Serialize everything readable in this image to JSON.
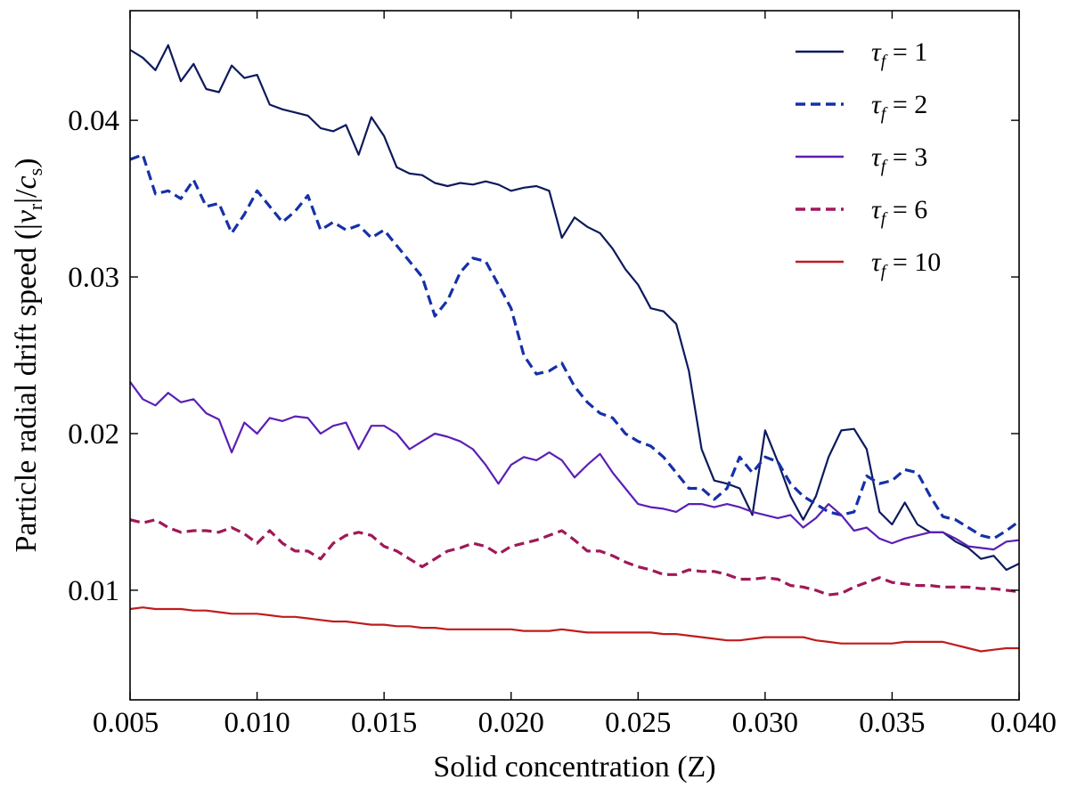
{
  "chart_data": {
    "type": "line",
    "title": "",
    "xlabel": "Solid concentration (Z)",
    "ylabel": "Particle radial drift speed (|v_r|/c_s)",
    "ylabel_parts": {
      "prefix": "Particle radial drift speed (|",
      "v": "v",
      "r": "r",
      "mid": "|/",
      "c": "c",
      "s": "s",
      "suffix": ")"
    },
    "xlim": [
      0.005,
      0.04
    ],
    "ylim": [
      0.003,
      0.047
    ],
    "xticks": [
      "0.005",
      "0.010",
      "0.015",
      "0.020",
      "0.025",
      "0.030",
      "0.035",
      "0.040"
    ],
    "xtick_values": [
      0.005,
      0.01,
      0.015,
      0.02,
      0.025,
      0.03,
      0.035,
      0.04
    ],
    "yticks": [
      "0.01",
      "0.02",
      "0.03",
      "0.04"
    ],
    "ytick_values": [
      0.01,
      0.02,
      0.03,
      0.04
    ],
    "grid": false,
    "legend_position": "top-right",
    "x": [
      0.005,
      0.0055,
      0.006,
      0.0065,
      0.007,
      0.0075,
      0.008,
      0.0085,
      0.009,
      0.0095,
      0.01,
      0.0105,
      0.011,
      0.0115,
      0.012,
      0.0125,
      0.013,
      0.0135,
      0.014,
      0.0145,
      0.015,
      0.0155,
      0.016,
      0.0165,
      0.017,
      0.0175,
      0.018,
      0.0185,
      0.019,
      0.0195,
      0.02,
      0.0205,
      0.021,
      0.0215,
      0.022,
      0.0225,
      0.023,
      0.0235,
      0.024,
      0.0245,
      0.025,
      0.0255,
      0.026,
      0.0265,
      0.027,
      0.0275,
      0.028,
      0.0285,
      0.029,
      0.0295,
      0.03,
      0.0305,
      0.031,
      0.0315,
      0.032,
      0.0325,
      0.033,
      0.0335,
      0.034,
      0.0345,
      0.035,
      0.0355,
      0.036,
      0.0365,
      0.037,
      0.0375,
      0.038,
      0.0385,
      0.039,
      0.0395,
      0.04
    ],
    "series": [
      {
        "name": "τ_f = 1",
        "legend_value": "1",
        "color": "#0d1a5c",
        "dash": "solid",
        "width": 2.2,
        "values": [
          0.0445,
          0.044,
          0.0432,
          0.0448,
          0.0425,
          0.0436,
          0.042,
          0.0418,
          0.0435,
          0.0427,
          0.0429,
          0.041,
          0.0407,
          0.0405,
          0.0403,
          0.0395,
          0.0393,
          0.0397,
          0.0378,
          0.0402,
          0.039,
          0.037,
          0.0366,
          0.0365,
          0.036,
          0.0358,
          0.036,
          0.0359,
          0.0361,
          0.0359,
          0.0355,
          0.0357,
          0.0358,
          0.0355,
          0.0325,
          0.0338,
          0.0332,
          0.0328,
          0.0318,
          0.0305,
          0.0295,
          0.028,
          0.0278,
          0.027,
          0.024,
          0.019,
          0.017,
          0.0168,
          0.0165,
          0.0148,
          0.0202,
          0.0182,
          0.016,
          0.0145,
          0.016,
          0.0185,
          0.0202,
          0.0203,
          0.019,
          0.015,
          0.0142,
          0.0156,
          0.0142,
          0.0137,
          0.0137,
          0.0131,
          0.0127,
          0.012,
          0.0122,
          0.0113,
          0.0117
        ]
      },
      {
        "name": "τ_f = 2",
        "legend_value": "2",
        "color": "#1530a8",
        "dash": "dashed",
        "width": 3.2,
        "values": [
          0.0375,
          0.0378,
          0.0353,
          0.0355,
          0.035,
          0.0362,
          0.0345,
          0.0347,
          0.0328,
          0.034,
          0.0355,
          0.0345,
          0.0335,
          0.0342,
          0.0352,
          0.033,
          0.0335,
          0.033,
          0.0333,
          0.0325,
          0.033,
          0.032,
          0.031,
          0.03,
          0.0275,
          0.0285,
          0.0303,
          0.0312,
          0.031,
          0.0295,
          0.028,
          0.025,
          0.0238,
          0.024,
          0.0245,
          0.023,
          0.022,
          0.0213,
          0.021,
          0.02,
          0.0195,
          0.0192,
          0.0185,
          0.0175,
          0.0165,
          0.0165,
          0.0158,
          0.0165,
          0.0185,
          0.0175,
          0.0185,
          0.0182,
          0.0168,
          0.016,
          0.0155,
          0.015,
          0.0148,
          0.015,
          0.0173,
          0.0168,
          0.017,
          0.0177,
          0.0175,
          0.016,
          0.0147,
          0.0145,
          0.014,
          0.0135,
          0.0133,
          0.0138,
          0.0144
        ]
      },
      {
        "name": "τ_f = 3",
        "legend_value": "3",
        "color": "#5a1fb5",
        "dash": "solid",
        "width": 2.2,
        "values": [
          0.0233,
          0.0222,
          0.0218,
          0.0226,
          0.022,
          0.0222,
          0.0213,
          0.0209,
          0.0188,
          0.0207,
          0.02,
          0.021,
          0.0208,
          0.0211,
          0.021,
          0.02,
          0.0205,
          0.0207,
          0.019,
          0.0205,
          0.0205,
          0.02,
          0.019,
          0.0195,
          0.02,
          0.0198,
          0.0195,
          0.019,
          0.018,
          0.0168,
          0.018,
          0.0185,
          0.0183,
          0.0188,
          0.0183,
          0.0172,
          0.018,
          0.0187,
          0.0175,
          0.0165,
          0.0155,
          0.0153,
          0.0152,
          0.015,
          0.0155,
          0.0155,
          0.0153,
          0.0155,
          0.0153,
          0.015,
          0.0148,
          0.0146,
          0.0148,
          0.014,
          0.0146,
          0.0155,
          0.0148,
          0.0138,
          0.014,
          0.0133,
          0.013,
          0.0133,
          0.0135,
          0.0137,
          0.0137,
          0.0133,
          0.0128,
          0.0127,
          0.0126,
          0.0131,
          0.0132
        ]
      },
      {
        "name": "τ_f = 6",
        "legend_value": "6",
        "color": "#a01858",
        "dash": "dashed",
        "width": 3.2,
        "values": [
          0.0145,
          0.0143,
          0.0145,
          0.014,
          0.0137,
          0.0138,
          0.0138,
          0.0137,
          0.014,
          0.0136,
          0.013,
          0.0138,
          0.013,
          0.0125,
          0.0125,
          0.012,
          0.013,
          0.0135,
          0.0137,
          0.0135,
          0.0128,
          0.0125,
          0.012,
          0.0115,
          0.012,
          0.0125,
          0.0127,
          0.013,
          0.0128,
          0.0123,
          0.0128,
          0.013,
          0.0132,
          0.0135,
          0.0138,
          0.0132,
          0.0125,
          0.0125,
          0.0122,
          0.0118,
          0.0115,
          0.0113,
          0.011,
          0.011,
          0.0113,
          0.0112,
          0.0112,
          0.011,
          0.0107,
          0.0107,
          0.0108,
          0.0107,
          0.0103,
          0.0102,
          0.01,
          0.0097,
          0.0098,
          0.0102,
          0.0105,
          0.0108,
          0.0105,
          0.0104,
          0.0103,
          0.0103,
          0.0102,
          0.0102,
          0.0102,
          0.0101,
          0.0101,
          0.01,
          0.0099
        ]
      },
      {
        "name": "τ_f = 10",
        "legend_value": "10",
        "color": "#c01c1c",
        "dash": "solid",
        "width": 2.2,
        "values": [
          0.0088,
          0.0089,
          0.0088,
          0.0088,
          0.0088,
          0.0087,
          0.0087,
          0.0086,
          0.0085,
          0.0085,
          0.0085,
          0.0084,
          0.0083,
          0.0083,
          0.0082,
          0.0081,
          0.008,
          0.008,
          0.0079,
          0.0078,
          0.0078,
          0.0077,
          0.0077,
          0.0076,
          0.0076,
          0.0075,
          0.0075,
          0.0075,
          0.0075,
          0.0075,
          0.0075,
          0.0074,
          0.0074,
          0.0074,
          0.0075,
          0.0074,
          0.0073,
          0.0073,
          0.0073,
          0.0073,
          0.0073,
          0.0073,
          0.0072,
          0.0072,
          0.0071,
          0.007,
          0.0069,
          0.0068,
          0.0068,
          0.0069,
          0.007,
          0.007,
          0.007,
          0.007,
          0.0068,
          0.0067,
          0.0066,
          0.0066,
          0.0066,
          0.0066,
          0.0066,
          0.0067,
          0.0067,
          0.0067,
          0.0067,
          0.0065,
          0.0063,
          0.0061,
          0.0062,
          0.0063,
          0.0063
        ]
      }
    ]
  }
}
